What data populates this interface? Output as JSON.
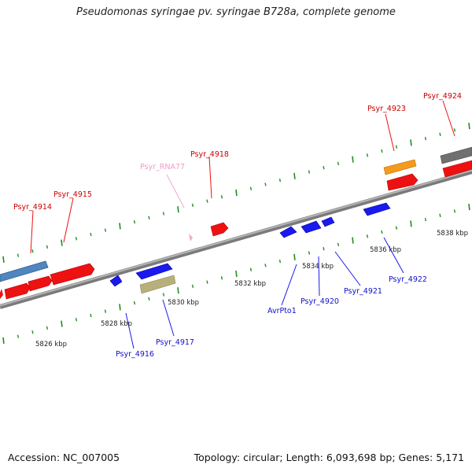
{
  "title": "Pseudomonas syringae pv. syringae B728a, complete genome",
  "footer": {
    "accession": "Accession: NC_007005",
    "genome_info": "Topology: circular; Length: 6,093,698 bp; Genes: 5,171"
  },
  "colors": {
    "red": "#ee1111",
    "blue": "#1a1aee",
    "steelblue": "#4f86c0",
    "orange": "#f59a1a",
    "khaki": "#b8b07a",
    "gray": "#707070",
    "pink": "#f4a6d0",
    "tick_green": "#1f8f1f",
    "backbone": "#8c8c8c"
  },
  "kbp_labels": [
    "5826 kbp",
    "5828 kbp",
    "5830 kbp",
    "5832 kbp",
    "5834 kbp",
    "5836 kbp",
    "5838 kbp"
  ],
  "gene_labels": {
    "top": [
      "Psyr_4914",
      "Psyr_4915",
      "Psyr_RNA77",
      "Psyr_4918",
      "Psyr_4923",
      "Psyr_4924"
    ],
    "bottom": [
      "Psyr_4916",
      "Psyr_4917",
      "AvrPto1",
      "Psyr_4920",
      "Psyr_4921",
      "Psyr_4922"
    ]
  }
}
